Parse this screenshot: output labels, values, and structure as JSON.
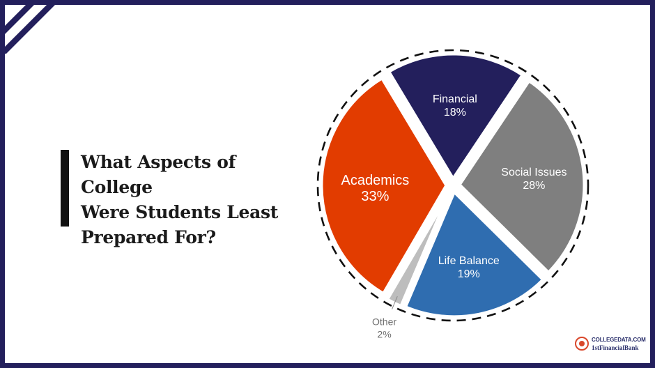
{
  "title": "What Aspects of College Were Students Least Prepared For?",
  "title_lines": [
    "What Aspects of College",
    "Were Students Least",
    "Prepared For?"
  ],
  "brand": {
    "line1": "COLLEGEDATA.COM",
    "line2": "1stFinancialBank"
  },
  "colors": {
    "frame": "#231f5c",
    "title": "#1a1a1a"
  },
  "chart_data": {
    "type": "pie",
    "title": "What Aspects of College Were Students Least Prepared For?",
    "slices": [
      {
        "name": "Financial",
        "value": 18,
        "label": "18%",
        "color": "#231f5c"
      },
      {
        "name": "Social Issues",
        "value": 28,
        "label": "28%",
        "color": "#7f7f7f"
      },
      {
        "name": "Life Balance",
        "value": 19,
        "label": "19%",
        "color": "#2f6db0"
      },
      {
        "name": "Other",
        "value": 2,
        "label": "2%",
        "color": "#bdbdbd"
      },
      {
        "name": "Academics",
        "value": 33,
        "label": "33%",
        "color": "#e23c00"
      }
    ],
    "legend": "none",
    "outline": "dashed circle"
  }
}
